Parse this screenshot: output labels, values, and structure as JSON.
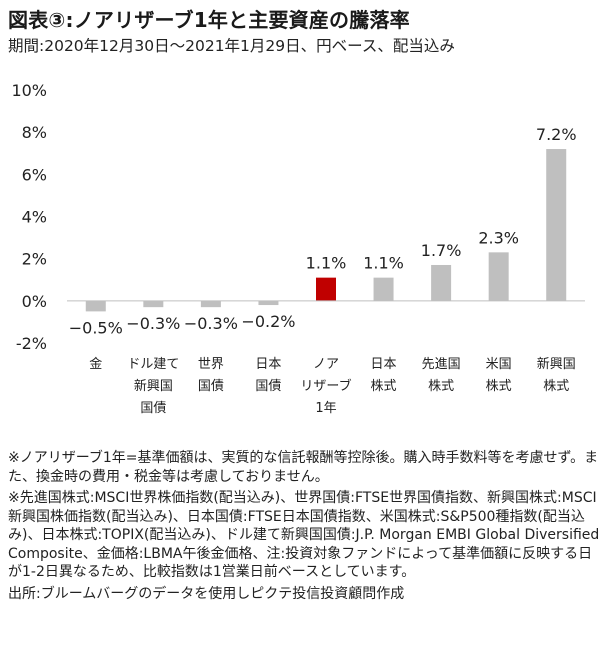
{
  "title": "図表③:ノアリザーブ1年と主要資産の騰落率",
  "subtitle": "期間:2020年12月30日〜2021年1月29日、円ベース、配当込み",
  "chart_data": {
    "type": "bar",
    "categories": [
      [
        "金"
      ],
      [
        "ドル建て",
        "新興国",
        "国債"
      ],
      [
        "世界",
        "国債"
      ],
      [
        "日本",
        "国債"
      ],
      [
        "ノア",
        "リザーブ",
        "1年"
      ],
      [
        "日本",
        "株式"
      ],
      [
        "先進国",
        "株式"
      ],
      [
        "米国",
        "株式"
      ],
      [
        "新興国",
        "株式"
      ]
    ],
    "values": [
      -0.5,
      -0.3,
      -0.3,
      -0.2,
      1.1,
      1.1,
      1.7,
      2.3,
      7.2
    ],
    "value_labels": [
      "−0.5%",
      "−0.3%",
      "−0.3%",
      "−0.2%",
      "1.1%",
      "1.1%",
      "1.7%",
      "2.3%",
      "7.2%"
    ],
    "highlight_index": 4,
    "ylim": [
      -2,
      10
    ],
    "yticks": [
      -2,
      0,
      2,
      4,
      6,
      8,
      10
    ],
    "ytick_labels": [
      "-2%",
      "0%",
      "2%",
      "4%",
      "6%",
      "8%",
      "10%"
    ],
    "grid": false,
    "colors": {
      "bar": "#bfbfbf",
      "highlight": "#c00000",
      "axis": "#bfbfbf"
    }
  },
  "notes": [
    "※ノアリザーブ1年=基準価額は、実質的な信託報酬等控除後。購入時手数料等を考慮せず。また、換金時の費用・税金等は考慮しておりません。",
    "※先進国株式:MSCI世界株価指数(配当込み)、世界国債:FTSE世界国債指数、新興国株式:MSCI新興国株価指数(配当込み)、日本国債:FTSE日本国債指数、米国株式:S&P500種指数(配当込み)、日本株式:TOPIX(配当込み)、ドル建て新興国国債:J.P. Morgan EMBI Global Diversified Composite、金価格:LBMA午後金価格、注:投資対象ファンドによって基準価額に反映する日が1-2日異なるため、比較指数は1営業日前ベースとしています。",
    "出所:ブルームバーグのデータを使用しピクテ投信投資顧問作成"
  ]
}
